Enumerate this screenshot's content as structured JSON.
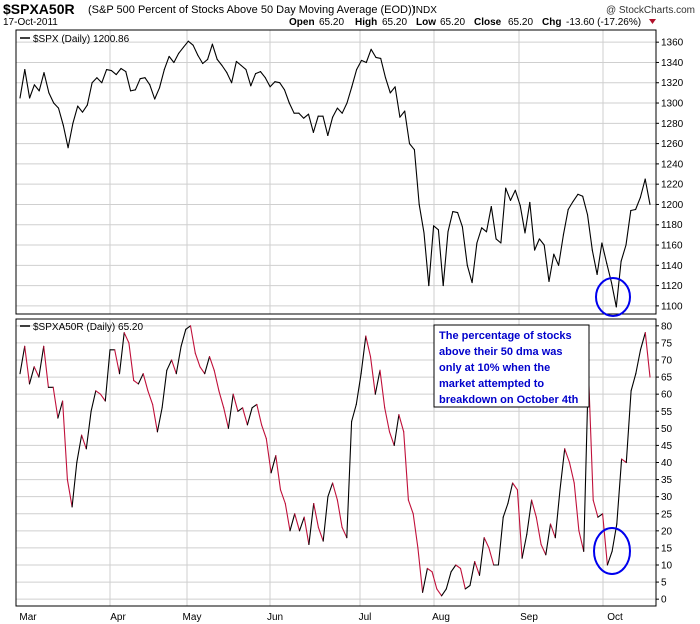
{
  "header": {
    "symbol": "$SPXA50R",
    "description": "(S&P 500 Percent of Stocks Above 50 Day Moving Average (EOD))",
    "exchange": "INDX",
    "date": "17-Oct-2011",
    "open_label": "Open",
    "open": "65.20",
    "high_label": "High",
    "high": "65.20",
    "low_label": "Low",
    "low": "65.20",
    "close_label": "Close",
    "close": "65.20",
    "chg_label": "Chg",
    "chg": "-13.60 (-17.26%)",
    "copyright": "@ StockCharts.com"
  },
  "annotation": {
    "lines": [
      "The percentage of stocks",
      "above their 50 dma was",
      "only at 10% when the",
      "market attempted to",
      "breakdown on October 4th"
    ],
    "text_color": "#0000cc",
    "circle_color": "#0000ee"
  },
  "colors": {
    "grid": "#cfcfcf",
    "frame": "#000000",
    "line": "#000000",
    "down": "#c0103a",
    "chg_triangle": "#b0102a"
  },
  "chart_data": [
    {
      "type": "line",
      "legend": "$SPX (Daily) 1200.86",
      "x_labels": [
        "Mar",
        "Apr",
        "May",
        "Jun",
        "Jul",
        "Aug",
        "Sep",
        "Oct"
      ],
      "ylim": [
        1092,
        1372
      ],
      "yticks": [
        1100,
        1120,
        1140,
        1160,
        1180,
        1200,
        1220,
        1240,
        1260,
        1280,
        1300,
        1320,
        1340,
        1360
      ],
      "grid": true,
      "values": [
        1305,
        1333,
        1305,
        1318,
        1312,
        1330,
        1310,
        1300,
        1295,
        1278,
        1256,
        1280,
        1297,
        1291,
        1298,
        1320,
        1325,
        1320,
        1333,
        1332,
        1328,
        1334,
        1331,
        1312,
        1313,
        1324,
        1325,
        1318,
        1304,
        1315,
        1333,
        1346,
        1340,
        1349,
        1355,
        1361,
        1357,
        1347,
        1339,
        1343,
        1358,
        1343,
        1337,
        1330,
        1320,
        1341,
        1337,
        1333,
        1317,
        1329,
        1331,
        1325,
        1316,
        1321,
        1320,
        1313,
        1300,
        1290,
        1290,
        1285,
        1289,
        1271,
        1287,
        1287,
        1268,
        1286,
        1295,
        1290,
        1300,
        1316,
        1333,
        1342,
        1340,
        1353,
        1345,
        1344,
        1325,
        1310,
        1316,
        1286,
        1292,
        1260,
        1254,
        1200,
        1172,
        1120,
        1179,
        1175,
        1120,
        1173,
        1193,
        1192,
        1178,
        1140,
        1123,
        1162,
        1177,
        1173,
        1198,
        1166,
        1162,
        1216,
        1204,
        1214,
        1199,
        1172,
        1202,
        1155,
        1166,
        1160,
        1124,
        1151,
        1140,
        1170,
        1195,
        1203,
        1210,
        1208,
        1190,
        1155,
        1131,
        1162,
        1142,
        1123,
        1099,
        1144,
        1160,
        1194,
        1195,
        1207,
        1225,
        1200
      ]
    },
    {
      "type": "line",
      "legend": "$SPXA50R (Daily) 65.20",
      "x_labels": [
        "Mar",
        "Apr",
        "May",
        "Jun",
        "Jul",
        "Aug",
        "Sep",
        "Oct"
      ],
      "ylim": [
        -2,
        82
      ],
      "yticks": [
        0,
        5,
        10,
        15,
        20,
        25,
        30,
        35,
        40,
        45,
        50,
        55,
        60,
        65,
        70,
        75,
        80
      ],
      "grid": true,
      "values": [
        66,
        74,
        63,
        68,
        65,
        74,
        62,
        62,
        53,
        58,
        35,
        27,
        40,
        48,
        44,
        55,
        61,
        60,
        58,
        73,
        73,
        66,
        78,
        75,
        64,
        63,
        66,
        61,
        57,
        49,
        56,
        67,
        70,
        66,
        74,
        79,
        80,
        72,
        68,
        66,
        71,
        67,
        61,
        56,
        50,
        60,
        55,
        56,
        51,
        56,
        57,
        51,
        47,
        37,
        42,
        32,
        28,
        20,
        25,
        20,
        24,
        16,
        28,
        21,
        17,
        30,
        34,
        29,
        21,
        18,
        52,
        57,
        66,
        77,
        71,
        60,
        67,
        56,
        49,
        45,
        54,
        49,
        29,
        25,
        15,
        2,
        9,
        8,
        3,
        1,
        3,
        8,
        10,
        9,
        3,
        4,
        11,
        7,
        18,
        15,
        10,
        10,
        24,
        28,
        34,
        32,
        12,
        19,
        29,
        24,
        16,
        13,
        22,
        18,
        32,
        44,
        40,
        34,
        20,
        14,
        67,
        29,
        24,
        25,
        10,
        14,
        22,
        41,
        40,
        61,
        66,
        73,
        78,
        65
      ]
    }
  ]
}
